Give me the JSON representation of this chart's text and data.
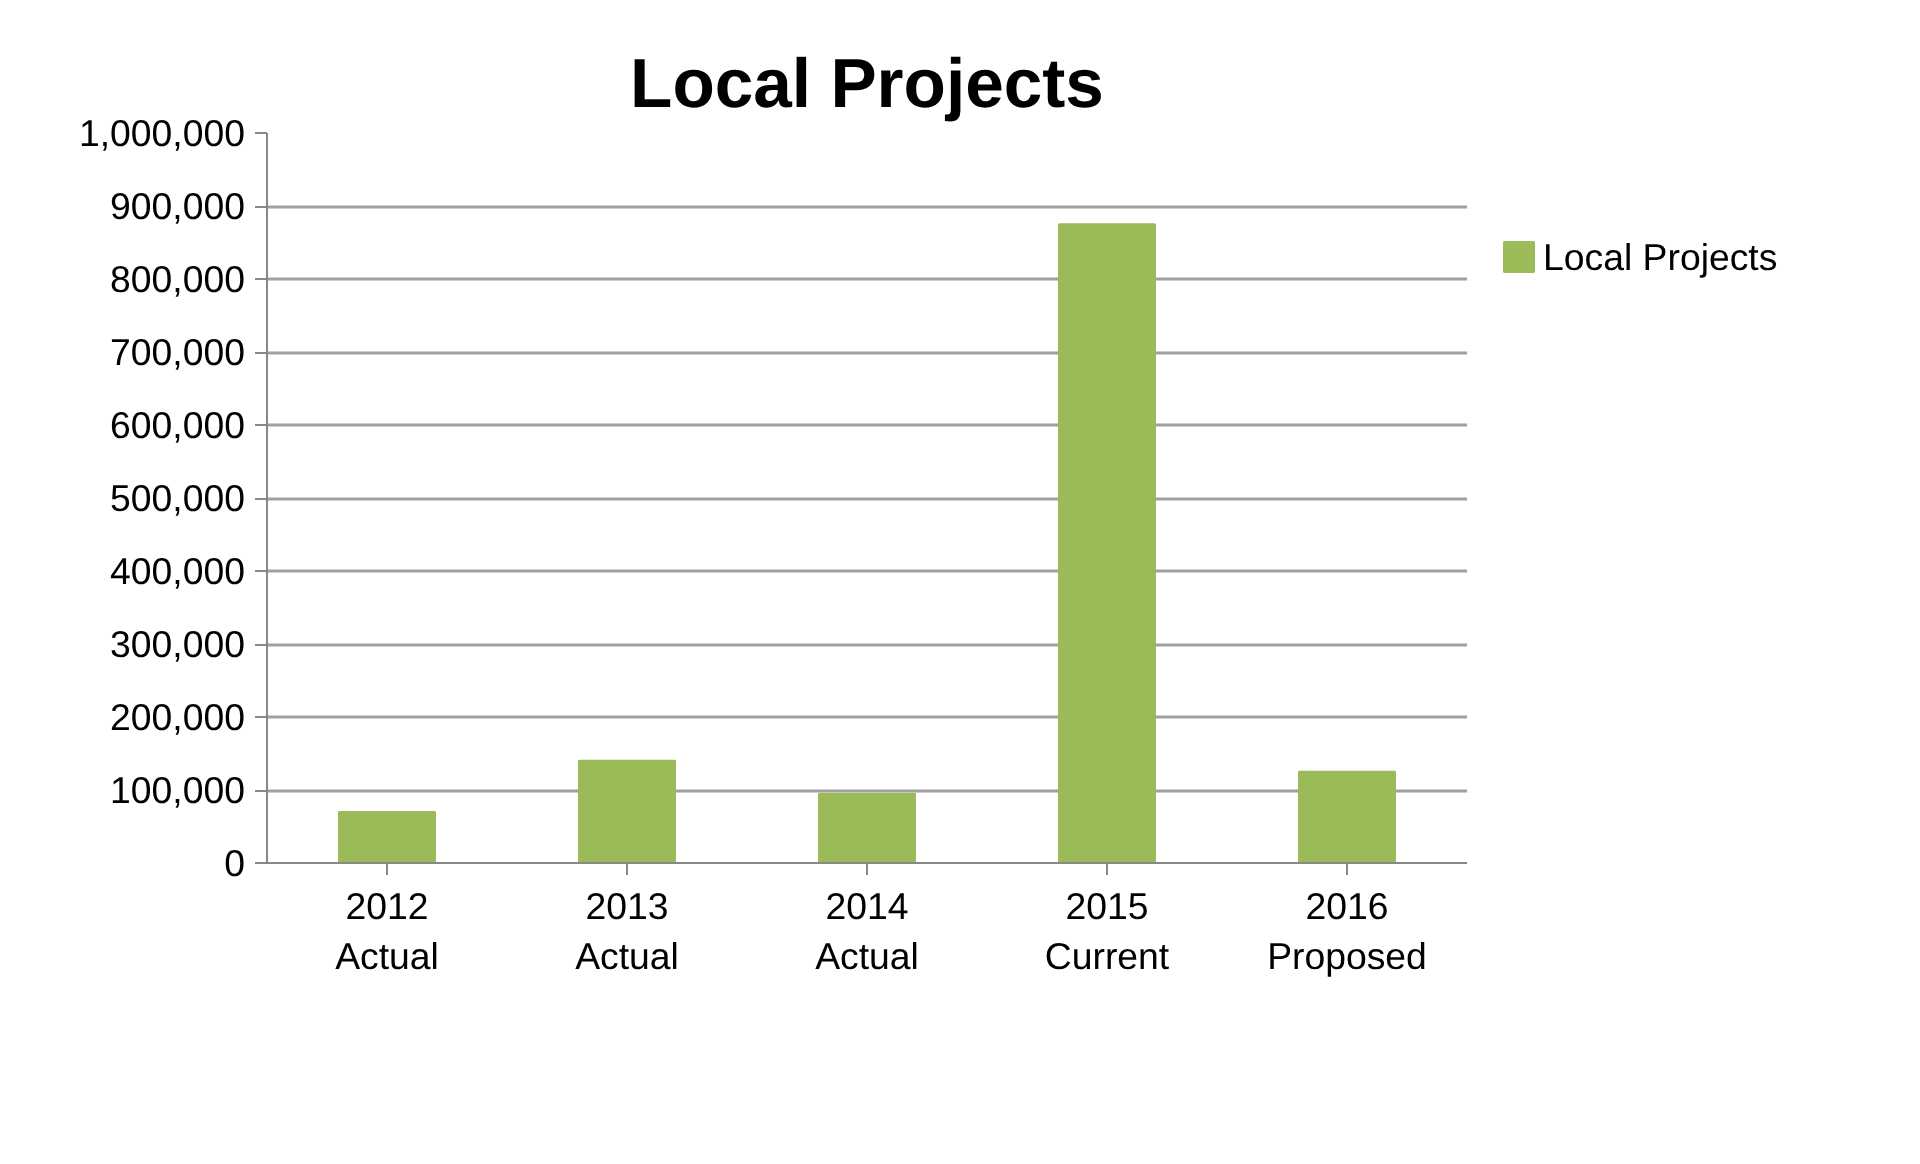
{
  "chart_data": {
    "type": "bar",
    "title": "Local Projects",
    "categories": [
      "2012\nActual",
      "2013\nActual",
      "2014\nActual",
      "2015\nCurrent",
      "2016\nProposed"
    ],
    "series": [
      {
        "name": "Local Projects",
        "color": "#9bbb59",
        "values": [
          70000,
          140000,
          95000,
          875000,
          125000
        ]
      }
    ],
    "ylim": [
      0,
      1000000
    ],
    "yticks": [
      {
        "value": 0,
        "label": "0"
      },
      {
        "value": 100000,
        "label": "100,000"
      },
      {
        "value": 200000,
        "label": "200,000"
      },
      {
        "value": 300000,
        "label": "300,000"
      },
      {
        "value": 400000,
        "label": "400,000"
      },
      {
        "value": 500000,
        "label": "500,000"
      },
      {
        "value": 600000,
        "label": "600,000"
      },
      {
        "value": 700000,
        "label": "700,000"
      },
      {
        "value": 800000,
        "label": "800,000"
      },
      {
        "value": 900000,
        "label": "900,000"
      },
      {
        "value": 1000000,
        "label": "1,000,000"
      }
    ],
    "grid": "y",
    "legend": "right"
  }
}
